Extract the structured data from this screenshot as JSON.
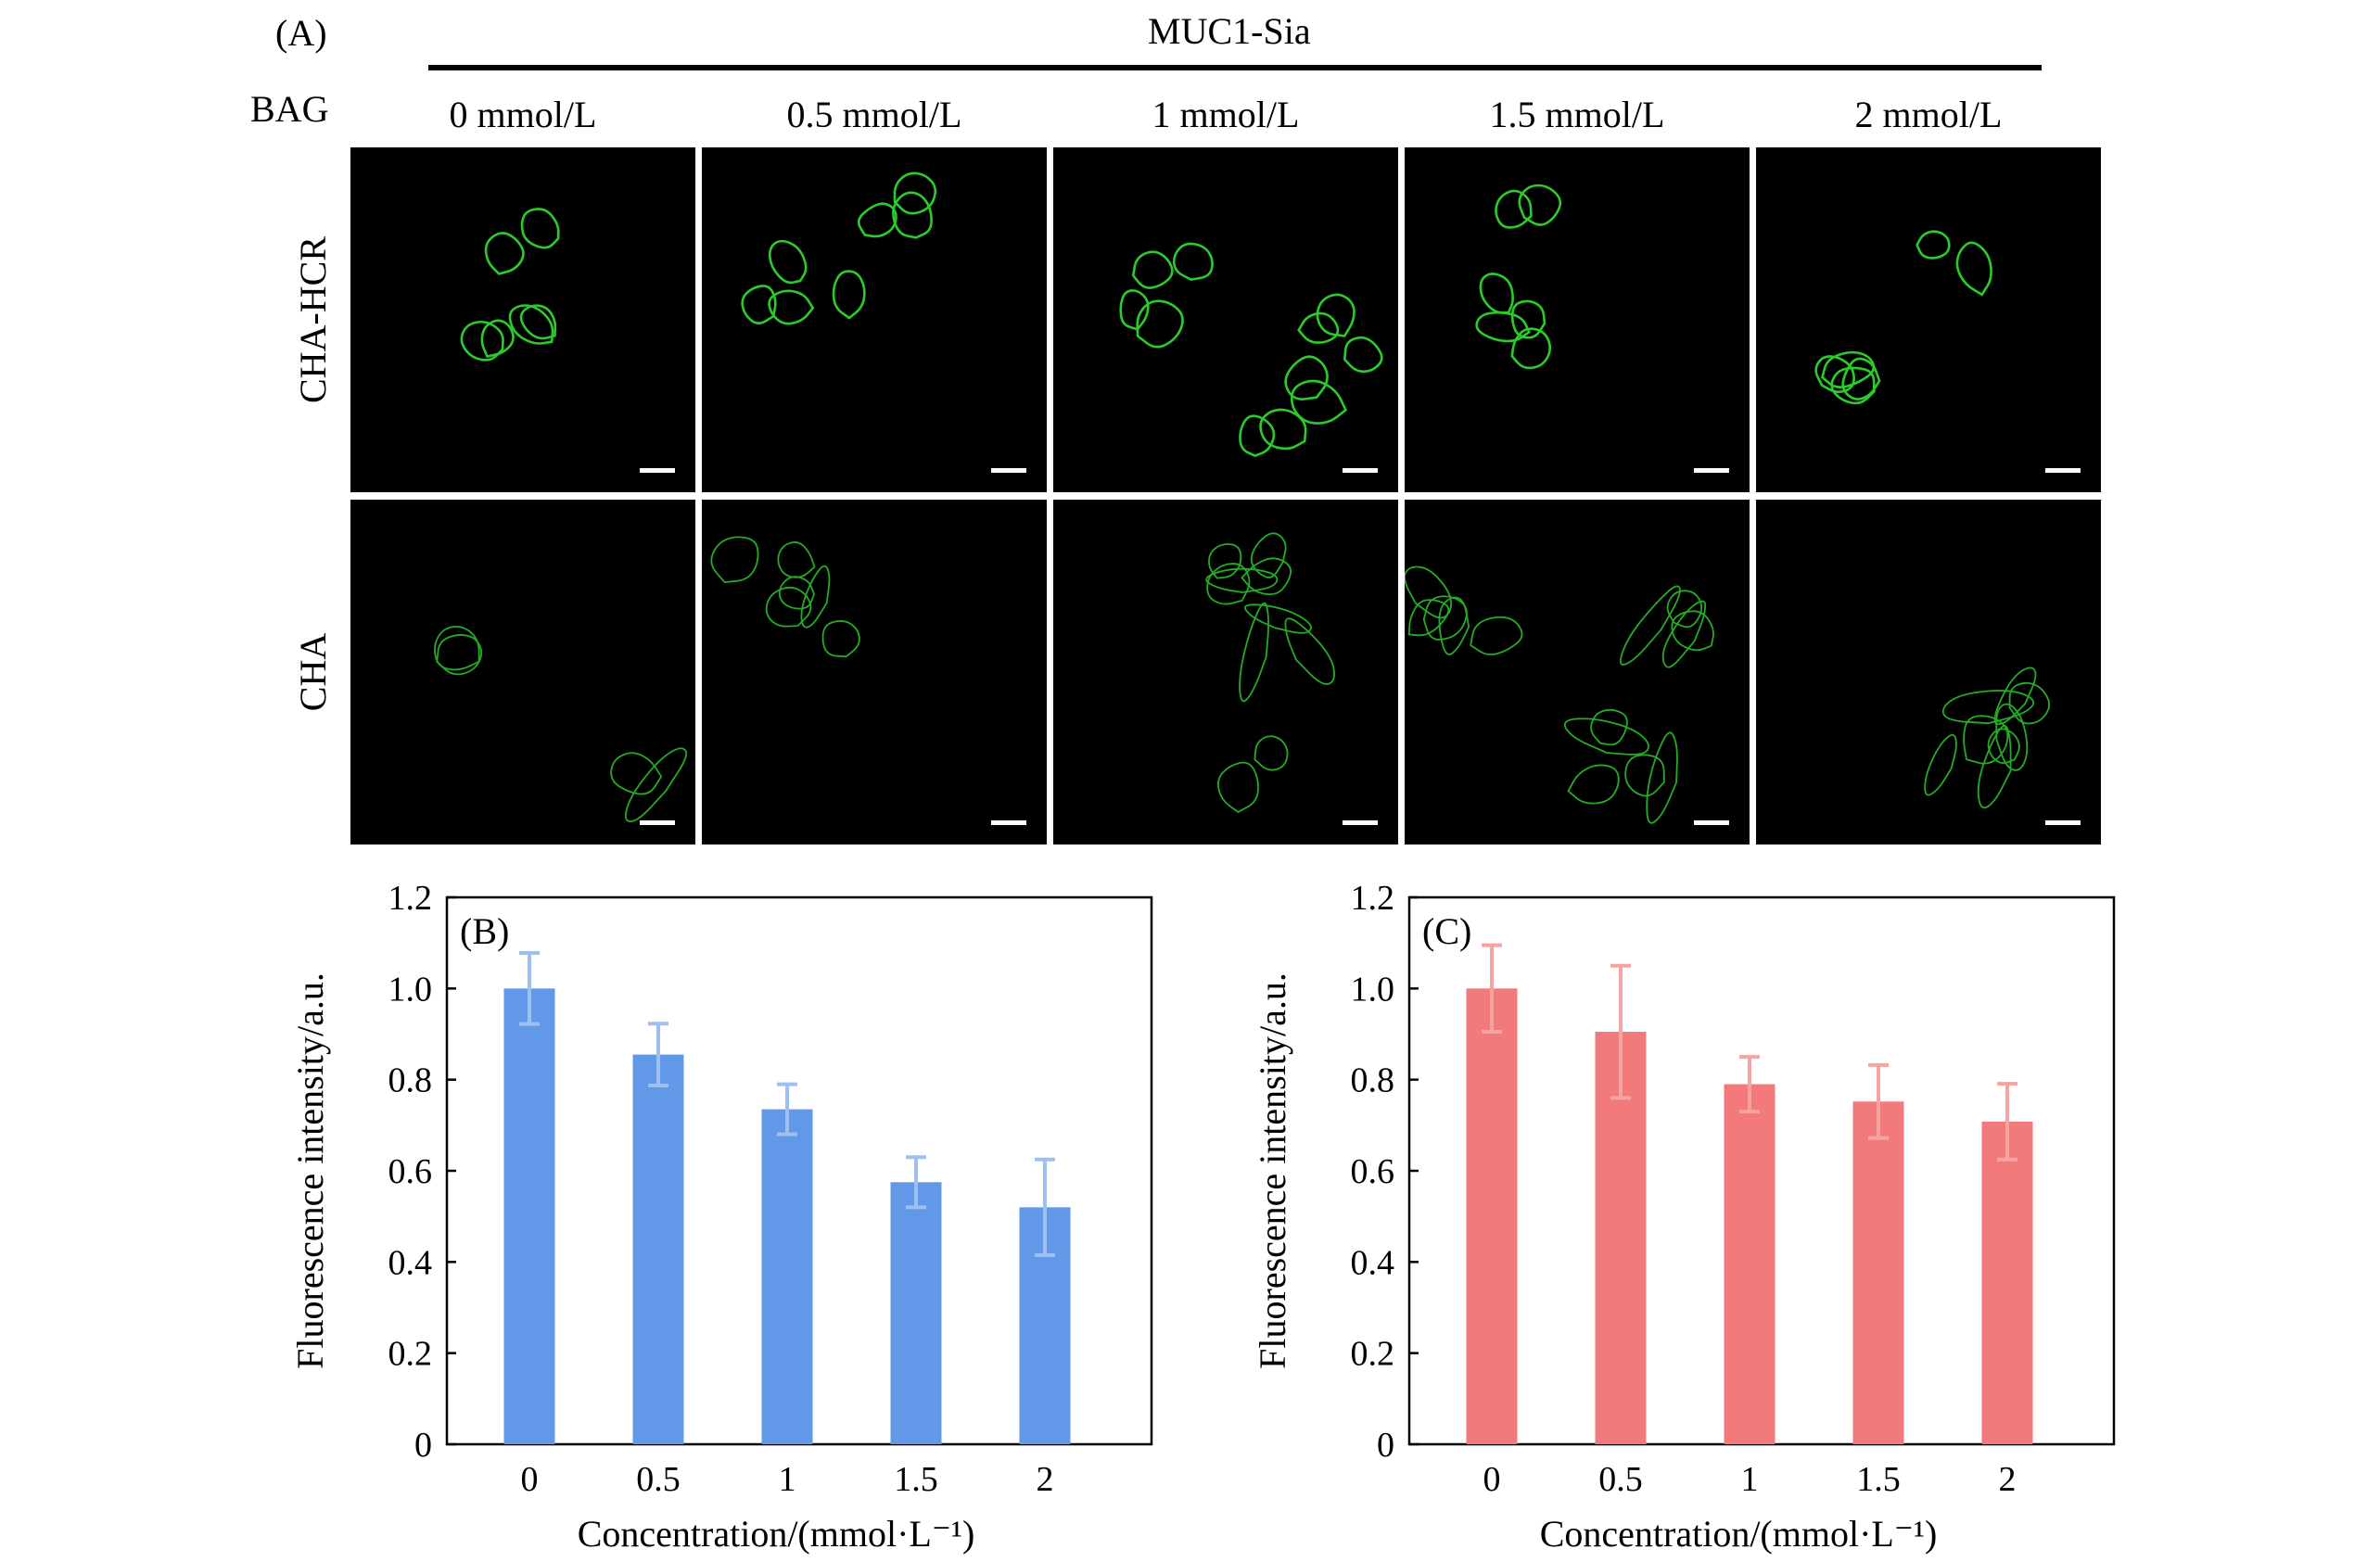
{
  "figure": {
    "panel_a_label": "(A)",
    "group_title": "MUC1-Sia",
    "treatment_label": "BAG",
    "columns": [
      "0 mmol/L",
      "0.5 mmol/L",
      "1 mmol/L",
      "1.5 mmol/L",
      "2 mmol/L"
    ],
    "rows": [
      "CHA-HCR",
      "CHA"
    ],
    "cell_color": "#2fd62f"
  },
  "chart_data": [
    {
      "type": "bar",
      "panel_label": "(B)",
      "categories": [
        "0",
        "0.5",
        "1",
        "1.5",
        "2"
      ],
      "values": [
        1.0,
        0.855,
        0.735,
        0.575,
        0.52
      ],
      "errors": [
        0.078,
        0.068,
        0.055,
        0.055,
        0.105
      ],
      "ylabel": "Fluorescence intensity/a.u.",
      "xlabel": "Concentration/(mmol·L⁻¹)",
      "ylim": [
        0,
        1.2
      ],
      "yticks": [
        "0",
        "0.2",
        "0.4",
        "0.6",
        "0.8",
        "1.0",
        "1.2"
      ],
      "bar_color": "#6199e8",
      "error_color": "#9ec0f0",
      "grid": false
    },
    {
      "type": "bar",
      "panel_label": "(C)",
      "categories": [
        "0",
        "0.5",
        "1",
        "1.5",
        "2"
      ],
      "values": [
        1.0,
        0.905,
        0.79,
        0.752,
        0.708
      ],
      "errors": [
        0.095,
        0.145,
        0.06,
        0.08,
        0.083
      ],
      "ylabel": "Fluorescence intensity/a.u.",
      "xlabel": "Concentration/(mmol·L⁻¹)",
      "ylim": [
        0,
        1.2
      ],
      "yticks": [
        "0",
        "0.2",
        "0.4",
        "0.6",
        "0.8",
        "1.0",
        "1.2"
      ],
      "bar_color": "#f27a7a",
      "error_color": "#f5a3a3",
      "grid": false
    }
  ]
}
